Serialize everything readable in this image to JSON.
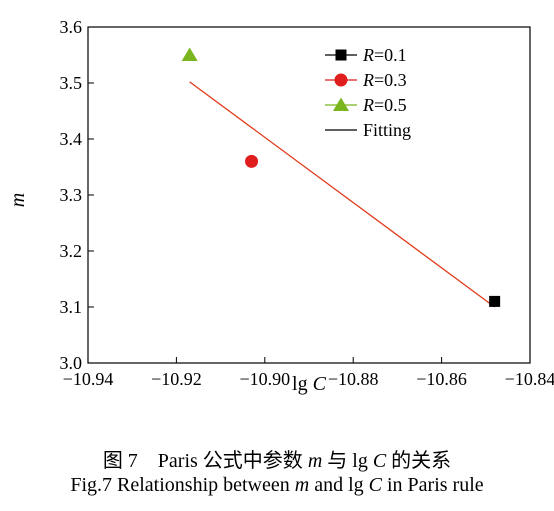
{
  "chart_data": {
    "type": "scatter",
    "xlabel_parts": [
      "lg ",
      "C"
    ],
    "ylabel": "m",
    "xlim": [
      -10.94,
      -10.84
    ],
    "ylim": [
      3.0,
      3.6
    ],
    "xticks": [
      "−10.94",
      "−10.92",
      "−10.90",
      "−10.88",
      "−10.86",
      "−10.84"
    ],
    "xtick_values": [
      -10.94,
      -10.92,
      -10.9,
      -10.88,
      -10.86,
      -10.84
    ],
    "yticks": [
      "3.0",
      "3.1",
      "3.2",
      "3.3",
      "3.4",
      "3.5",
      "3.6"
    ],
    "ytick_values": [
      3.0,
      3.1,
      3.2,
      3.3,
      3.4,
      3.5,
      3.6
    ],
    "series": [
      {
        "name_var": "R",
        "name_value": "=0.1",
        "marker": "square",
        "color": "#000000",
        "x": -10.848,
        "y": 3.11
      },
      {
        "name_var": "R",
        "name_value": "=0.3",
        "marker": "circle",
        "color": "#e01e1e",
        "x": -10.903,
        "y": 3.36
      },
      {
        "name_var": "R",
        "name_value": "=0.5",
        "marker": "triangle",
        "color": "#7ab51d",
        "x": -10.917,
        "y": 3.55
      }
    ],
    "fit": {
      "name": "Fitting",
      "color": "#e03a1a",
      "x": [
        -10.917,
        -10.848
      ],
      "y": [
        3.502,
        3.1
      ]
    },
    "grid": false,
    "legend_position": "top-right"
  },
  "caption": {
    "cn_parts": [
      "图 7    Paris 公式中参数 ",
      "m",
      " 与 lg ",
      "C",
      " 的关系"
    ],
    "en_parts": [
      "Fig.7 Relationship between ",
      "m",
      " and lg ",
      "C",
      " in Paris rule"
    ]
  }
}
